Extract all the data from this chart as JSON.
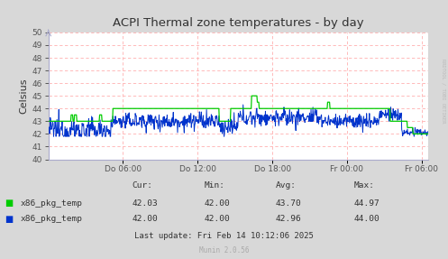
{
  "title": "ACPI Thermal zone temperatures - by day",
  "ylabel": "Celsius",
  "bg_color": "#d8d8d8",
  "plot_bg_color": "#ffffff",
  "ylim": [
    40,
    50
  ],
  "yticks": [
    40,
    41,
    42,
    43,
    44,
    45,
    46,
    47,
    48,
    49,
    50
  ],
  "xtick_labels": [
    "Do 06:00",
    "Do 12:00",
    "Do 18:00",
    "Fr 00:00",
    "Fr 06:00"
  ],
  "line1_color": "#00cc00",
  "line2_color": "#0033cc",
  "legend_label1": "x86_pkg_temp",
  "legend_label2": "x86_pkg_temp",
  "footer_text": "Last update: Fri Feb 14 10:12:06 2025",
  "munin_text": "Munin 2.0.56",
  "table_headers": [
    "Cur:",
    "Min:",
    "Avg:",
    "Max:"
  ],
  "table_row1": [
    "42.03",
    "42.00",
    "43.70",
    "44.97"
  ],
  "table_row2": [
    "42.00",
    "42.00",
    "42.96",
    "44.00"
  ],
  "rrdtool_text": "RRDTOOL / TOBI OETIKER",
  "grid_color": "#ffb0b0",
  "spine_color": "#aaaacc",
  "tick_color": "#555555",
  "title_color": "#333333",
  "text_color": "#333333"
}
